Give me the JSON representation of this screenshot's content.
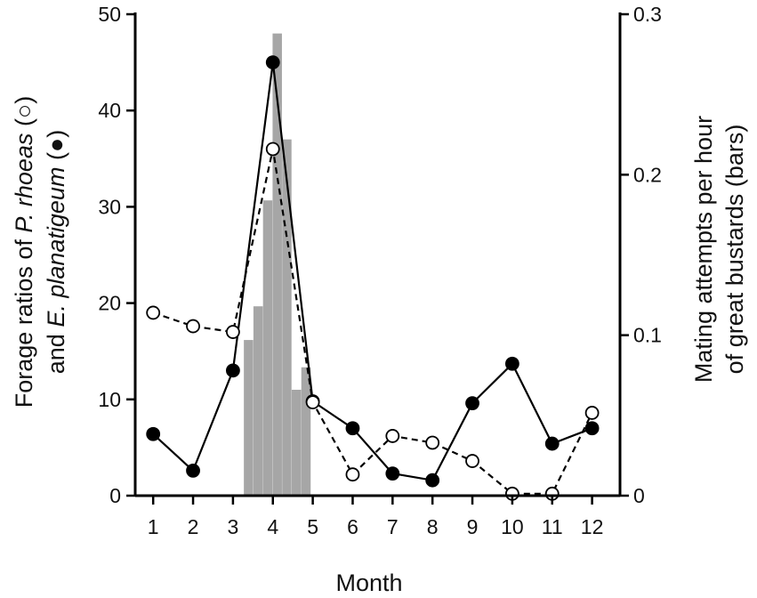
{
  "chart_data": {
    "type": "line",
    "xlabel": "Month",
    "ylabel_left": {
      "line1_parts": [
        "Forage ratios of ",
        "P. rhoeas",
        " (○)"
      ],
      "line2_parts": [
        "and ",
        "E. planatigeum",
        " (●)"
      ]
    },
    "ylabel_right": {
      "line1": "Mating attempts per hour",
      "line2": "of great bustards (bars)"
    },
    "x_ticks": [
      "1",
      "2",
      "3",
      "4",
      "5",
      "6",
      "7",
      "8",
      "9",
      "10",
      "11",
      "12"
    ],
    "xlim": [
      0.55,
      12.7
    ],
    "ylim_left": [
      0,
      50
    ],
    "ylim_right": [
      0,
      0.3
    ],
    "y_ticks_left": [
      "0",
      "10",
      "20",
      "30",
      "40",
      "50"
    ],
    "y_ticks_right": [
      "0",
      "0.1",
      "0.2",
      "0.3"
    ],
    "series": [
      {
        "marker": "open-circle",
        "line_style": "dashed",
        "x": [
          1,
          2,
          3,
          4,
          5,
          6,
          7,
          8,
          9,
          10,
          11,
          12
        ],
        "y": [
          19,
          17.6,
          17,
          36,
          9.7,
          2.2,
          6.2,
          5.5,
          3.6,
          0.2,
          0.2,
          8.6
        ]
      },
      {
        "marker": "filled-circle",
        "line_style": "solid",
        "x": [
          1,
          2,
          3,
          4,
          5,
          6,
          7,
          8,
          9,
          10,
          11,
          12
        ],
        "y": [
          6.4,
          2.6,
          13,
          45,
          9.8,
          7,
          2.3,
          1.6,
          9.6,
          13.7,
          5.4,
          7
        ]
      }
    ],
    "bars": {
      "axis": "right",
      "color": "#a6a6a6",
      "x": [
        3.39,
        3.63,
        3.87,
        4.11,
        4.35,
        4.59,
        4.83
      ],
      "values": [
        0.097,
        0.118,
        0.184,
        0.288,
        0.222,
        0.066,
        0.08
      ]
    },
    "grid": false,
    "colors": {
      "line": "#000000",
      "bar": "#a6a6a6",
      "open_marker_fill": "#ffffff"
    }
  }
}
